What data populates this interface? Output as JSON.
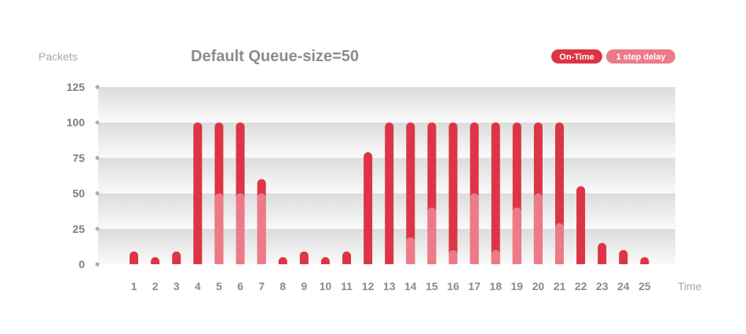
{
  "chart_data": {
    "type": "bar",
    "title": "Default Queue-size=50",
    "ylabel": "Packets",
    "xlabel": "Time",
    "ylim": [
      0,
      125
    ],
    "yticks": [
      0,
      25,
      50,
      75,
      100,
      125
    ],
    "categories": [
      "1",
      "2",
      "3",
      "4",
      "5",
      "6",
      "7",
      "8",
      "9",
      "10",
      "11",
      "12",
      "13",
      "14",
      "15",
      "16",
      "17",
      "18",
      "19",
      "20",
      "21",
      "22",
      "23",
      "24",
      "25"
    ],
    "series": [
      {
        "name": "On-Time",
        "color": "#dc3545",
        "values": [
          9,
          5,
          9,
          100,
          100,
          100,
          60,
          5,
          9,
          5,
          9,
          79,
          100,
          100,
          100,
          100,
          100,
          100,
          100,
          100,
          100,
          55,
          15,
          10,
          5
        ]
      },
      {
        "name": "1 step delay",
        "color": "#ec7a88",
        "values": [
          0,
          0,
          0,
          0,
          50,
          50,
          50,
          0,
          0,
          0,
          0,
          0,
          0,
          19,
          40,
          10,
          50,
          10,
          40,
          50,
          29,
          0,
          0,
          0,
          0
        ]
      }
    ],
    "grid": true,
    "legend_position": "top-right"
  }
}
